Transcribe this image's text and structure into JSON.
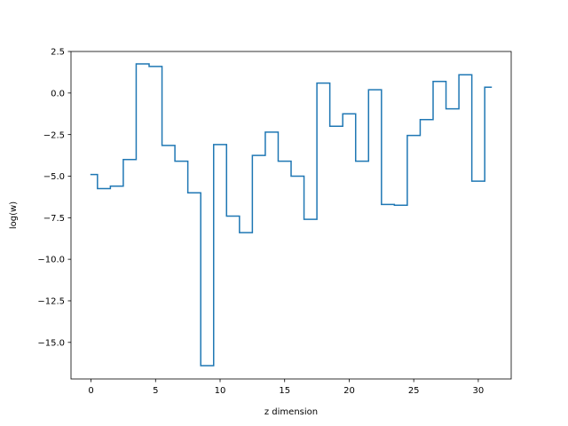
{
  "chart_data": {
    "type": "line",
    "drawstyle": "steps-mid",
    "title": "",
    "xlabel": "z dimension",
    "ylabel": "log(w)",
    "xlim": [
      -1.55,
      32.55
    ],
    "ylim": [
      -17.2,
      2.5
    ],
    "xticks": [
      0,
      5,
      10,
      15,
      20,
      25,
      30
    ],
    "yticks": [
      2.5,
      0.0,
      -2.5,
      -5.0,
      -7.5,
      -10.0,
      -12.5,
      -15.0
    ],
    "xtick_labels": [
      "0",
      "5",
      "10",
      "15",
      "20",
      "25",
      "30"
    ],
    "ytick_labels": [
      "2.5",
      "0.0",
      "−2.5",
      "−5.0",
      "−7.5",
      "−10.0",
      "−12.5",
      "−15.0"
    ],
    "grid": false,
    "legend": "none",
    "series": [
      {
        "color": "#1f77b4",
        "x": [
          0,
          1,
          2,
          3,
          4,
          5,
          6,
          7,
          8,
          9,
          10,
          11,
          12,
          13,
          14,
          15,
          16,
          17,
          18,
          19,
          20,
          21,
          22,
          23,
          24,
          25,
          26,
          27,
          28,
          29,
          30,
          31
        ],
        "values": [
          -4.9,
          -5.75,
          -5.6,
          -4.0,
          1.75,
          1.6,
          -3.15,
          -4.1,
          -6.0,
          -16.4,
          -3.1,
          -7.4,
          -8.4,
          -3.75,
          -2.35,
          -4.1,
          -5.0,
          -7.6,
          0.6,
          -2.0,
          -1.25,
          -4.1,
          0.2,
          -6.7,
          -6.75,
          -2.55,
          -1.6,
          0.7,
          -0.95,
          1.1,
          -5.3,
          0.35
        ]
      }
    ]
  }
}
